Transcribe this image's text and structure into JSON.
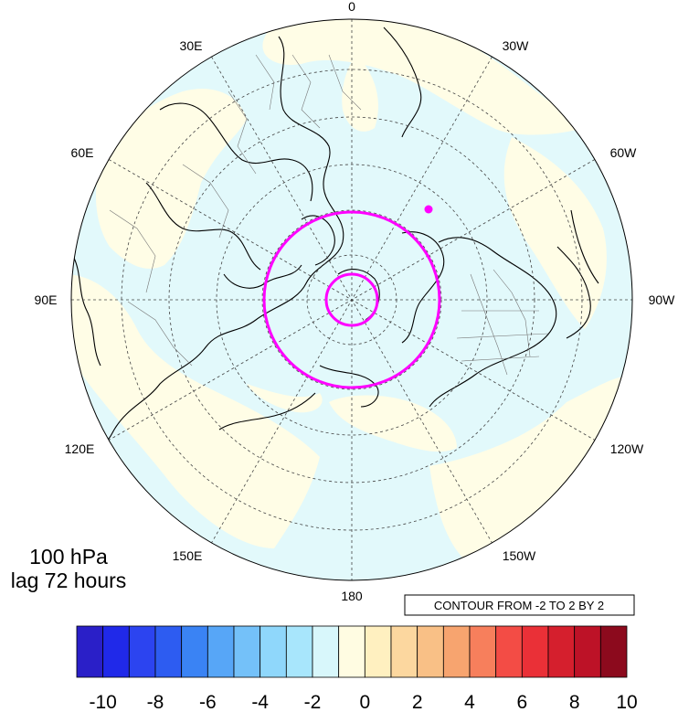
{
  "map": {
    "projection": "north polar stereographic",
    "longitude_labels": {
      "top": "0",
      "bottom": "180",
      "left": "90E",
      "right": "90W",
      "e30": "30E",
      "e60": "60E",
      "e120": "120E",
      "e150": "150E",
      "w30": "30W",
      "w60": "60W",
      "w120": "120W",
      "w150": "150W"
    },
    "title_line1": "100 hPa",
    "title_line2": "lag 72 hours",
    "contour_info": "CONTOUR FROM -2 TO 2 BY 2",
    "colors": {
      "ocean_neutral": "#e2f9fb",
      "land_neutral": "#fffde6",
      "positive_field": "#fffde6",
      "negative_field": "#e2f9fb",
      "marker": "#ff00ff",
      "coast": "#000000"
    }
  },
  "colorbar": {
    "labels": [
      "-10",
      "-8",
      "-6",
      "-4",
      "-2",
      "0",
      "2",
      "4",
      "6",
      "8",
      "10"
    ],
    "colors": [
      "#2a1fc8",
      "#2029e9",
      "#2c44f0",
      "#2d5cf1",
      "#3a83f4",
      "#57a6f7",
      "#74c1f9",
      "#8fd7fb",
      "#a8e6fc",
      "#d8f7fb",
      "#fffce2",
      "#fff0c0",
      "#fcd79f",
      "#f9c086",
      "#f7a46f",
      "#f77f5c",
      "#f34c45",
      "#ea3037",
      "#d51f2d",
      "#bd1227",
      "#8c0a1d"
    ]
  }
}
